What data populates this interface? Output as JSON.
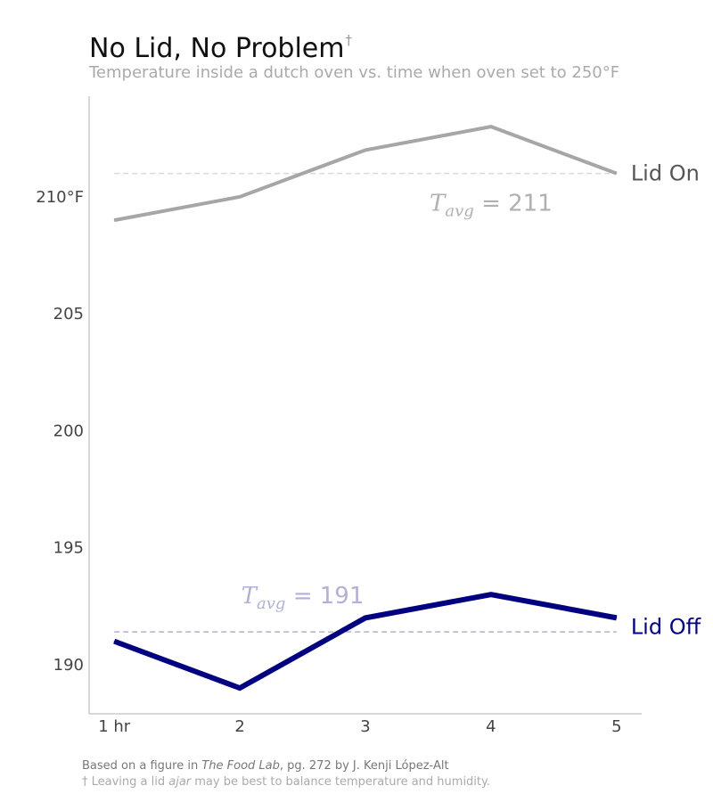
{
  "header": {
    "title": "No Lid, No Problem",
    "title_mark": "†",
    "subtitle": "Temperature inside a dutch oven vs. time when oven set to 250°F"
  },
  "footnotes": {
    "source_prefix": "Based on a figure in ",
    "source_book": "The Food Lab",
    "source_suffix": ", pg. 272 by J. Kenji López-Alt",
    "note_prefix": "† Leaving a lid ",
    "note_em": "ajar",
    "note_suffix": " may be best to balance temperature and humidity."
  },
  "chart_data": {
    "type": "line",
    "x": [
      1,
      2,
      3,
      4,
      5
    ],
    "x_tick_labels": [
      "1 hr",
      "2",
      "3",
      "4",
      "5"
    ],
    "y_ticks": [
      190,
      195,
      200,
      205,
      210
    ],
    "y_tick_labels": [
      "190",
      "195",
      "200",
      "205",
      "210°F"
    ],
    "xlim": [
      0.8,
      5.2
    ],
    "ylim": [
      187.9,
      214.3
    ],
    "grid": false,
    "series": [
      {
        "name": "Lid On",
        "values": [
          209,
          210,
          212,
          213,
          211
        ],
        "color": "#a6a6a6",
        "avg": 211,
        "avg_label": "211",
        "avg_label_x": 4.0
      },
      {
        "name": "Lid Off",
        "values": [
          191,
          189,
          192,
          193,
          192
        ],
        "color": "#000080",
        "avg": 191.4,
        "avg_label": "191",
        "avg_label_x": 2.5
      }
    ],
    "avg_symbol": "T",
    "avg_subscript": "avg",
    "avg_equals": " = "
  }
}
